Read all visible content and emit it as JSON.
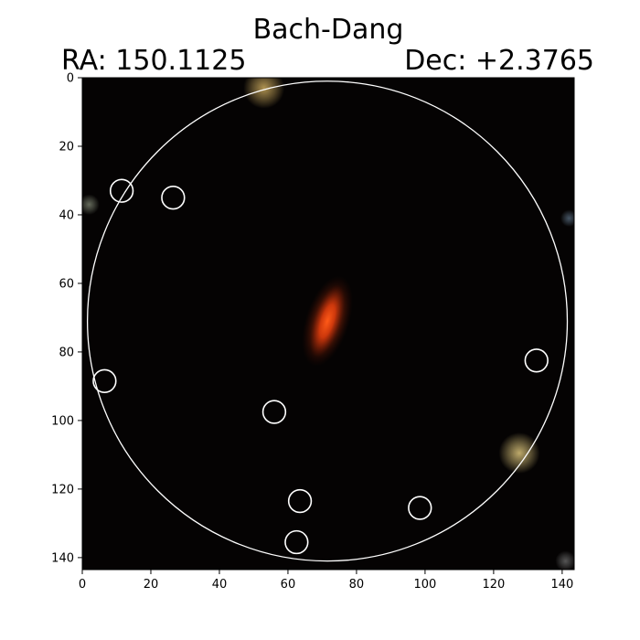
{
  "figure": {
    "title": "Bach-Dang",
    "ra_label": "RA: 150.1125",
    "dec_label": "Dec: +2.3765"
  },
  "image": {
    "extent": [
      0,
      143.5
    ],
    "background": "#050303",
    "target": {
      "x": 71.5,
      "y": 71,
      "rx": 4,
      "ry": 11,
      "angle": 18,
      "color": "#e83a0e"
    },
    "stars": [
      {
        "x": 53,
        "y": 3,
        "r": 6,
        "color": "#b89a55"
      },
      {
        "x": 2,
        "y": 37,
        "r": 3,
        "color": "#6a7060"
      },
      {
        "x": 127.5,
        "y": 109.5,
        "r": 6,
        "color": "#c7b270"
      },
      {
        "x": 142,
        "y": 41,
        "r": 2.5,
        "color": "#4a5a6a"
      },
      {
        "x": 141,
        "y": 141,
        "r": 3,
        "color": "#5a5a5a"
      }
    ]
  },
  "apertures": {
    "big": {
      "x": 71.5,
      "y": 71,
      "r": 70
    },
    "small_radius": 3.3,
    "small": [
      {
        "x": 11.5,
        "y": 33
      },
      {
        "x": 26.5,
        "y": 35
      },
      {
        "x": 6.5,
        "y": 88.5
      },
      {
        "x": 56,
        "y": 97.5
      },
      {
        "x": 63.5,
        "y": 123.5
      },
      {
        "x": 62.5,
        "y": 135.5
      },
      {
        "x": 98.5,
        "y": 125.5
      },
      {
        "x": 132.5,
        "y": 82.5
      }
    ]
  },
  "axes": {
    "x_ticks": [
      "0",
      "20",
      "40",
      "60",
      "80",
      "100",
      "120",
      "140"
    ],
    "y_ticks": [
      "0",
      "20",
      "40",
      "60",
      "80",
      "100",
      "120",
      "140"
    ]
  }
}
